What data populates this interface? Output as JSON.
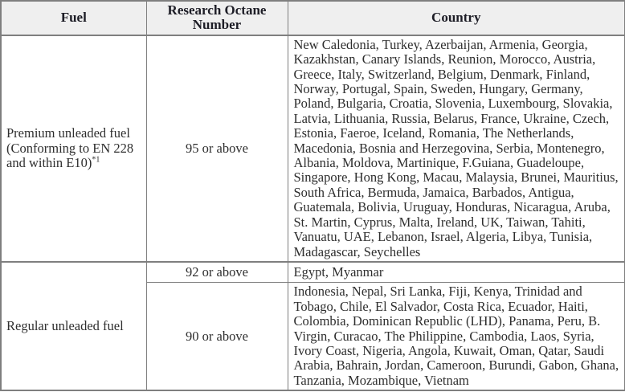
{
  "colors": {
    "header_bg": "#efefef",
    "border": "#7f7f7f",
    "header_text": "#1d1d26",
    "body_text": "#2e2e2e"
  },
  "table": {
    "headers": [
      {
        "label": "Fuel"
      },
      {
        "label": "Research Octane Number"
      },
      {
        "label": "Country"
      }
    ],
    "rows": [
      {
        "fuel": "Premium unleaded fuel (Conforming to EN 228 and within E10)",
        "fuel_note": "*1",
        "octane": "95 or above",
        "countries": "New Caledonia, Turkey, Azerbaijan, Armenia, Georgia, Kazakhstan, Canary Islands, Reunion, Morocco, Austria, Greece, Italy, Switzerland, Belgium, Denmark, Finland, Norway, Portugal, Spain, Sweden, Hungary, Germany, Poland, Bulgaria, Croatia, Slovenia, Luxembourg, Slovakia, Latvia, Lithuania, Russia, Belarus, France, Ukraine, Czech, Estonia, Faeroe, Iceland, Romania, The Netherlands, Macedonia, Bosnia and Herzegovina, Serbia, Montenegro, Albania, Moldova, Martinique, F.Guiana, Guadeloupe, Singapore, Hong Kong, Macau, Malaysia, Brunei, Mauritius, South Africa, Bermuda, Jamaica, Barbados, Antigua, Guatemala, Bolivia, Uruguay, Honduras, Nicaragua, Aruba, St. Martin, Cyprus, Malta, Ireland, UK, Taiwan, Tahiti, Vanuatu, UAE, Lebanon, Israel, Algeria, Libya, Tunisia, Madagascar, Seychelles"
      },
      {
        "fuel": "Regular unleaded fuel",
        "octane": "92 or above",
        "countries": "Egypt, Myanmar"
      },
      {
        "octane": "90 or above",
        "countries": "Indonesia, Nepal, Sri Lanka, Fiji, Kenya, Trinidad and Tobago, Chile, El Salvador, Costa Rica, Ecuador, Haiti, Colombia, Dominican Republic (LHD), Panama, Peru, B. Virgin, Curacao, The Philippine, Cambodia, Laos, Syria, Ivory Coast, Nigeria, Angola, Kuwait, Oman, Qatar, Saudi Arabia, Bahrain, Jordan, Cameroon, Burundi, Gabon, Ghana, Tanzania, Mozambique, Vietnam"
      }
    ]
  }
}
